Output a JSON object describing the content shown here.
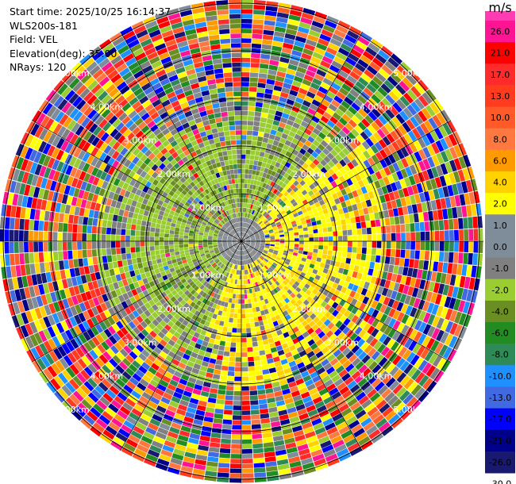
{
  "header": {
    "start_time": "Start time: 2025/10/25 16:14:37",
    "station": "WLS200s-181",
    "field": "Field: VEL",
    "elevation": "Elevation(deg): 35.00",
    "nrays": "NRays: 120"
  },
  "colorbar": {
    "unit": "m/s",
    "levels": [
      {
        "label": "26.0",
        "color": "#ff1493"
      },
      {
        "label": "21.0",
        "color": "#ff0000"
      },
      {
        "label": "17.0",
        "color": "#ff2a2a"
      },
      {
        "label": "13.0",
        "color": "#ff3c1e"
      },
      {
        "label": "10.0",
        "color": "#ff5a28"
      },
      {
        "label": "8.0",
        "color": "#ff7840"
      },
      {
        "label": "6.0",
        "color": "#ff9a00"
      },
      {
        "label": "4.0",
        "color": "#ffd200"
      },
      {
        "label": "2.0",
        "color": "#ffff00"
      },
      {
        "label": "1.0",
        "color": "#ffffff"
      },
      {
        "label": "0.0",
        "color": "#7f8c99"
      },
      {
        "label": "-1.0",
        "color": "#808080"
      },
      {
        "label": "-2.0",
        "color": "#9acd32"
      },
      {
        "label": "-4.0",
        "color": "#6b8e23"
      },
      {
        "label": "-6.0",
        "color": "#228b22"
      },
      {
        "label": "-8.0",
        "color": "#2e8b57"
      },
      {
        "label": "-10.0",
        "color": "#1e90ff"
      },
      {
        "label": "-13.0",
        "color": "#4169e1"
      },
      {
        "label": "-17.0",
        "color": "#0000ff"
      },
      {
        "label": "-21.0",
        "color": "#00008b"
      },
      {
        "label": "-26.0",
        "color": "#191970"
      },
      {
        "label": "-30.0",
        "color": ""
      }
    ]
  },
  "chart_data": {
    "type": "heatmap",
    "projection": "polar-ppi",
    "nrays": 120,
    "range_rings_km": [
      1,
      2,
      3,
      4,
      5
    ],
    "ring_labels": [
      {
        "text": "1.00km",
        "km": 1
      },
      {
        "text": "2.00km",
        "km": 2
      },
      {
        "text": "3.00km",
        "km": 3
      },
      {
        "text": "4.00km",
        "km": 4
      },
      {
        "text": "5.00km",
        "km": 5
      }
    ],
    "radial_lines_deg": [
      0,
      30,
      60,
      90,
      120,
      150,
      180,
      210,
      240,
      270,
      300,
      330
    ],
    "description_regions": [
      {
        "region": "near, west/northwest",
        "dominant": "-2.0 to -4.0 m/s"
      },
      {
        "region": "near, east/southeast",
        "dominant": "2.0 to 4.0 m/s"
      },
      {
        "region": "center",
        "dominant": "-1.0 to 0.0 m/s"
      },
      {
        "region": "beyond 3km",
        "dominant": "noisy, all values"
      }
    ]
  }
}
